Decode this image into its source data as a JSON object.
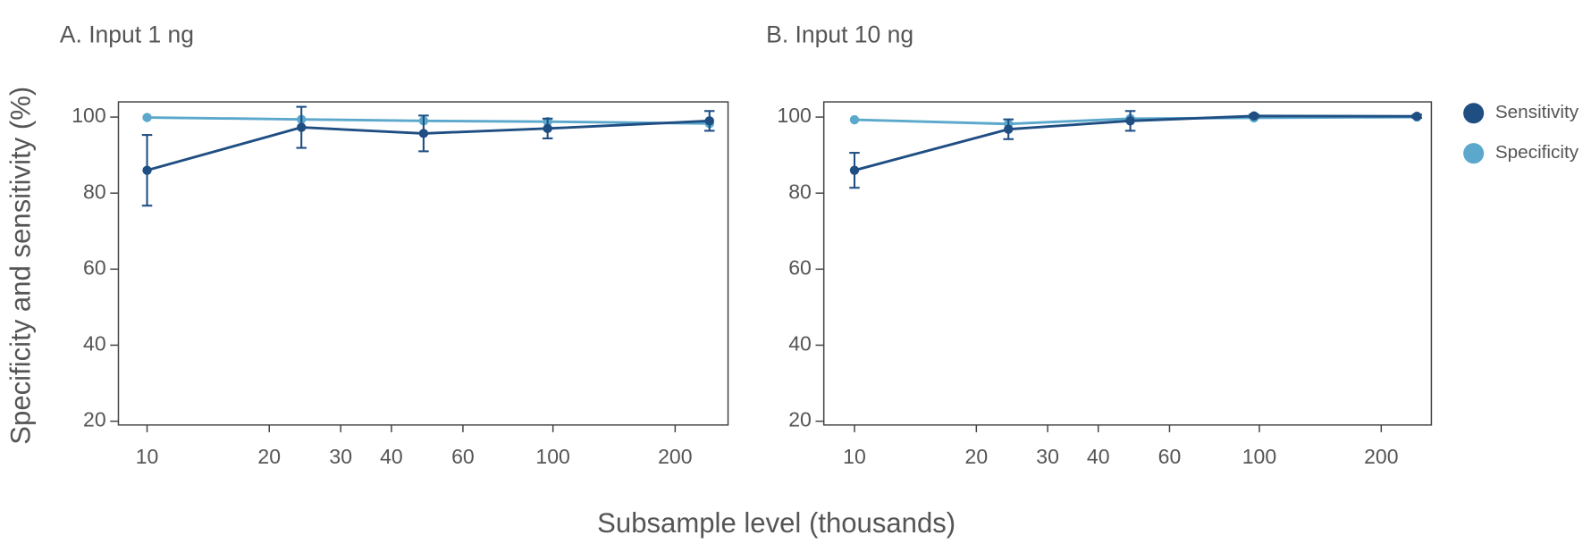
{
  "y_label": "Specificity and sensitivity (%)",
  "x_label": "Subsample level (thousands)",
  "legend": "right",
  "chart_data": [
    {
      "type": "line",
      "title": "A. Input 1 ng",
      "log_x": true,
      "x": [
        10,
        24,
        48,
        97,
        243
      ],
      "series": [
        {
          "name": "Sensitivity",
          "color": "#1f4e83",
          "values": [
            86,
            97.3,
            95.7,
            97,
            99
          ],
          "errors": [
            9.3,
            5.4,
            4.7,
            2.6,
            2.6
          ]
        },
        {
          "name": "Specificity",
          "color": "#5ba8cc",
          "values": [
            99.9,
            99.4,
            99,
            98.8,
            98.3
          ]
        }
      ],
      "xlim": [
        8.5,
        270
      ],
      "xticks": [
        10,
        20,
        30,
        40,
        60,
        100,
        200
      ],
      "ylim": [
        19,
        104
      ],
      "yticks": [
        20,
        40,
        60,
        80,
        100
      ]
    },
    {
      "type": "line",
      "title": "B. Input 10 ng",
      "log_x": true,
      "x": [
        10,
        24,
        48,
        97,
        245
      ],
      "series": [
        {
          "name": "Sensitivity",
          "color": "#1f4e83",
          "values": [
            86,
            96.8,
            99,
            100.3,
            100.2
          ],
          "errors": [
            4.6,
            2.6,
            2.6,
            0.4,
            0.4
          ]
        },
        {
          "name": "Specificity",
          "color": "#5ba8cc",
          "values": [
            99.3,
            98.2,
            99.6,
            99.8,
            100
          ]
        }
      ],
      "xlim": [
        8.4,
        266
      ],
      "xticks": [
        10,
        20,
        30,
        40,
        60,
        100,
        200
      ],
      "ylim": [
        19,
        104
      ],
      "yticks": [
        20,
        40,
        60,
        80,
        100
      ]
    }
  ]
}
